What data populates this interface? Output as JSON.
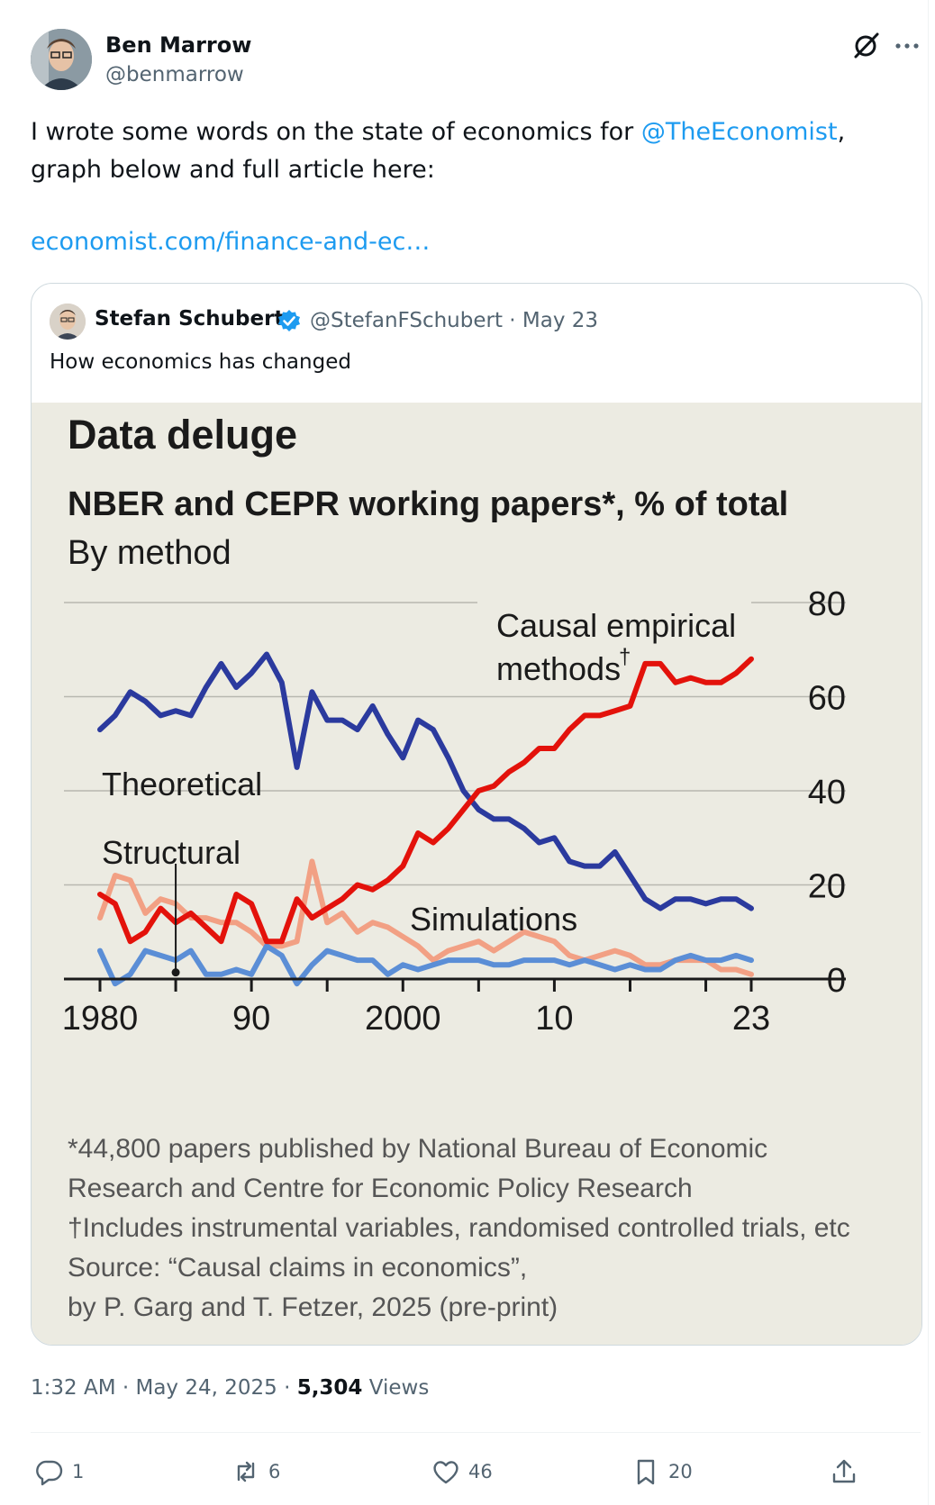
{
  "author": {
    "name": "Ben Marrow",
    "handle": "@benmarrow"
  },
  "tweet": {
    "text_before": "I wrote some words on the state of economics for ",
    "mention": "@TheEconomist",
    "text_after": ", graph below and full article here:",
    "url": "economist.com/finance-and-ec…"
  },
  "quote": {
    "name": "Stefan Schubert",
    "handle_date": "@StefanFSchubert · May 23",
    "text": "How economics has changed"
  },
  "chart_data": {
    "type": "line",
    "title": "Data deluge",
    "subtitle": "NBER and CEPR working papers*, % of total",
    "subtitle2": "By method",
    "x_ticks": [
      "1980",
      "90",
      "2000",
      "10",
      "23"
    ],
    "ylim": [
      0,
      80
    ],
    "y_ticks": [
      "80",
      "60",
      "40",
      "20",
      "0"
    ],
    "x": [
      1980,
      1981,
      1982,
      1983,
      1984,
      1985,
      1986,
      1987,
      1988,
      1989,
      1990,
      1991,
      1992,
      1993,
      1994,
      1995,
      1996,
      1997,
      1998,
      1999,
      2000,
      2001,
      2002,
      2003,
      2004,
      2005,
      2006,
      2007,
      2008,
      2009,
      2010,
      2011,
      2012,
      2013,
      2014,
      2015,
      2016,
      2017,
      2018,
      2019,
      2020,
      2021,
      2022,
      2023
    ],
    "series": [
      {
        "name": "Theoretical",
        "color": "#2b3a9e",
        "values": [
          53,
          56,
          61,
          59,
          56,
          57,
          56,
          62,
          67,
          62,
          65,
          69,
          63,
          45,
          61,
          55,
          55,
          53,
          58,
          52,
          47,
          55,
          53,
          47,
          40,
          36,
          34,
          34,
          32,
          29,
          30,
          25,
          24,
          24,
          27,
          22,
          17,
          15,
          17,
          17,
          16,
          17,
          17,
          15
        ]
      },
      {
        "name": "Causal empirical methods†",
        "color": "#e3120b",
        "values": [
          18,
          16,
          8,
          10,
          15,
          12,
          14,
          11,
          8,
          18,
          16,
          8,
          8,
          17,
          13,
          15,
          17,
          20,
          19,
          21,
          24,
          31,
          29,
          32,
          36,
          40,
          41,
          44,
          46,
          49,
          49,
          53,
          56,
          56,
          57,
          58,
          67,
          67,
          63,
          64,
          63,
          63,
          65,
          68
        ]
      },
      {
        "name": "Structural",
        "color": "#f2a084",
        "values": [
          13,
          22,
          21,
          14,
          17,
          16,
          13,
          13,
          12,
          12,
          10,
          7,
          7,
          8,
          25,
          12,
          14,
          10,
          12,
          11,
          9,
          7,
          4,
          6,
          7,
          8,
          6,
          8,
          10,
          9,
          8,
          5,
          4,
          5,
          6,
          5,
          3,
          3,
          4,
          4,
          4,
          2,
          2,
          1
        ]
      },
      {
        "name": "Simulations",
        "color": "#5b8ed6",
        "values": [
          6,
          -1,
          1,
          6,
          5,
          4,
          6,
          1,
          1,
          2,
          1,
          7,
          5,
          -1,
          3,
          6,
          5,
          4,
          4,
          1,
          3,
          2,
          3,
          4,
          4,
          4,
          3,
          3,
          4,
          4,
          4,
          3,
          4,
          3,
          2,
          3,
          2,
          2,
          4,
          5,
          4,
          4,
          5,
          4
        ]
      }
    ],
    "labels": {
      "causal": [
        "Causal empirical",
        "methods"
      ],
      "causal_mark": "†",
      "theoretical": "Theoretical",
      "structural": "Structural",
      "simulations": "Simulations"
    },
    "footnotes": [
      "*44,800 papers published by National Bureau of Economic",
      "Research and Centre for Economic Policy Research",
      "†Includes instrumental variables, randomised controlled trials, etc",
      "Source: “Causal claims in economics”,",
      "by P. Garg and T. Fetzer, 2025 (pre-print)"
    ]
  },
  "meta": {
    "time": "1:32 AM · May 24, 2025 · ",
    "views_count": "5,304",
    "views_label": " Views"
  },
  "actions": {
    "replies": "1",
    "reposts": "6",
    "likes": "46",
    "bookmarks": "20"
  },
  "colors": {
    "accent": "#1d9bf0",
    "muted": "#536471"
  }
}
